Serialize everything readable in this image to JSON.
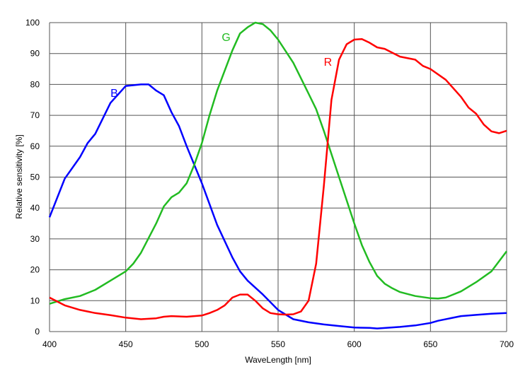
{
  "chart_data": {
    "type": "line",
    "title": "",
    "xlabel": "WaveLength [nm]",
    "ylabel": "Relative sensitivity [%]",
    "xlim": [
      400,
      700
    ],
    "ylim": [
      0,
      100
    ],
    "xticks": [
      "400",
      "450",
      "500",
      "550",
      "600",
      "650",
      "700"
    ],
    "yticks": [
      "0",
      "10",
      "20",
      "30",
      "40",
      "50",
      "60",
      "70",
      "80",
      "90",
      "100"
    ],
    "grid": true,
    "series": [
      {
        "name": "B",
        "color": "#0000ff",
        "label_at": [
          440,
          76
        ],
        "x": [
          400,
          410,
          420,
          425,
          430,
          440,
          450,
          460,
          465,
          470,
          475,
          480,
          485,
          490,
          500,
          510,
          520,
          525,
          530,
          540,
          550,
          560,
          570,
          580,
          590,
          600,
          610,
          615,
          630,
          640,
          650,
          655,
          670,
          680,
          690,
          700
        ],
        "y": [
          37,
          49.5,
          56.5,
          61,
          64,
          74,
          79.5,
          80,
          80,
          78,
          76.5,
          71,
          66.5,
          60,
          48,
          34.5,
          24,
          19.5,
          16.5,
          12,
          7,
          4,
          3,
          2.3,
          1.8,
          1.3,
          1.2,
          1,
          1.5,
          2,
          2.8,
          3.5,
          5,
          5.4,
          5.8,
          6
        ]
      },
      {
        "name": "G",
        "color": "#22bb22",
        "label_at": [
          513,
          94
        ],
        "x": [
          400,
          410,
          420,
          430,
          440,
          450,
          455,
          460,
          470,
          475,
          480,
          485,
          490,
          495,
          500,
          505,
          510,
          520,
          525,
          530,
          535,
          540,
          545,
          550,
          560,
          570,
          575,
          580,
          590,
          600,
          605,
          610,
          615,
          620,
          625,
          630,
          640,
          650,
          655,
          660,
          670,
          680,
          690,
          700
        ],
        "y": [
          9,
          10.5,
          11.5,
          13.5,
          16.5,
          19.5,
          22,
          25.5,
          35,
          40.5,
          43.5,
          45,
          48,
          54,
          61,
          70,
          78,
          91,
          96.5,
          98.5,
          100,
          99.5,
          97.5,
          94.5,
          87,
          77,
          72,
          65,
          50,
          35,
          28,
          22.5,
          18,
          15.5,
          14,
          12.8,
          11.5,
          10.8,
          10.7,
          11,
          13,
          16,
          19.5,
          26
        ]
      },
      {
        "name": "R",
        "color": "#ff0000",
        "label_at": [
          580,
          86
        ],
        "x": [
          400,
          410,
          420,
          430,
          440,
          450,
          460,
          470,
          475,
          480,
          490,
          500,
          505,
          510,
          515,
          520,
          525,
          530,
          535,
          540,
          545,
          550,
          555,
          560,
          565,
          570,
          575,
          580,
          585,
          590,
          595,
          600,
          605,
          610,
          615,
          620,
          630,
          640,
          645,
          650,
          660,
          670,
          675,
          680,
          685,
          690,
          695,
          700
        ],
        "y": [
          11,
          8.5,
          7,
          6,
          5.3,
          4.5,
          4,
          4.3,
          4.8,
          5,
          4.8,
          5.2,
          6,
          7,
          8.5,
          11,
          12,
          12,
          10,
          7.5,
          6,
          5.6,
          5.5,
          5.6,
          6.5,
          10,
          22,
          47,
          75,
          88,
          93,
          94.5,
          94.7,
          93.5,
          92,
          91.5,
          89,
          88,
          86,
          85,
          81.5,
          76,
          72.5,
          70.5,
          67,
          64.8,
          64.2,
          65
        ]
      }
    ]
  }
}
